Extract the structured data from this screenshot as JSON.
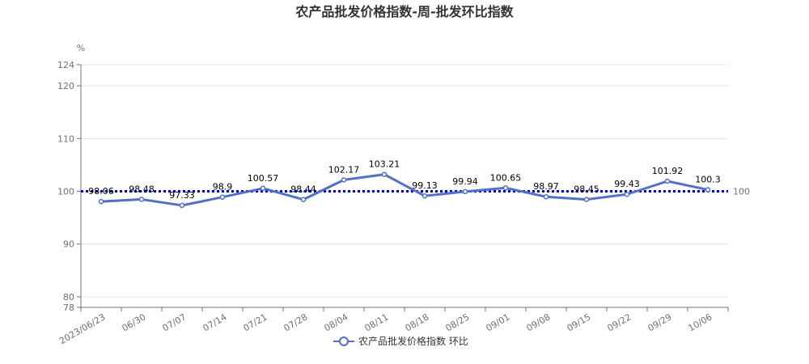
{
  "chart_data": {
    "type": "line",
    "title": "农产品批发价格指数-周-批发环比指数",
    "ylabel": "%",
    "xlabel": "",
    "ylim": [
      78,
      124
    ],
    "yticks": [
      "78",
      "80",
      "90",
      "100",
      "110",
      "120",
      "124"
    ],
    "grid": true,
    "legend_position": "bottom",
    "categories": [
      "2023/06/23",
      "06/30",
      "07/07",
      "07/14",
      "07/21",
      "07/28",
      "08/04",
      "08/11",
      "08/18",
      "08/25",
      "09/01",
      "09/08",
      "09/15",
      "09/22",
      "09/29",
      "10/06"
    ],
    "series": [
      {
        "name": "农产品批发价格指数 环比",
        "values": [
          98.06,
          98.48,
          97.33,
          98.9,
          100.57,
          98.44,
          102.17,
          103.21,
          99.13,
          99.94,
          100.65,
          98.97,
          98.45,
          99.43,
          101.92,
          100.3
        ],
        "labels": [
          "98.06",
          "98.48",
          "97.33",
          "98.9",
          "100.57",
          "98.44",
          "102.17",
          "103.21",
          "99.13",
          "99.94",
          "100.65",
          "98.97",
          "98.45",
          "99.43",
          "101.92",
          "100.3"
        ],
        "color": "#5470c6"
      }
    ],
    "reference_line": {
      "value": 100,
      "label": "100",
      "color": "#0000cc"
    }
  }
}
